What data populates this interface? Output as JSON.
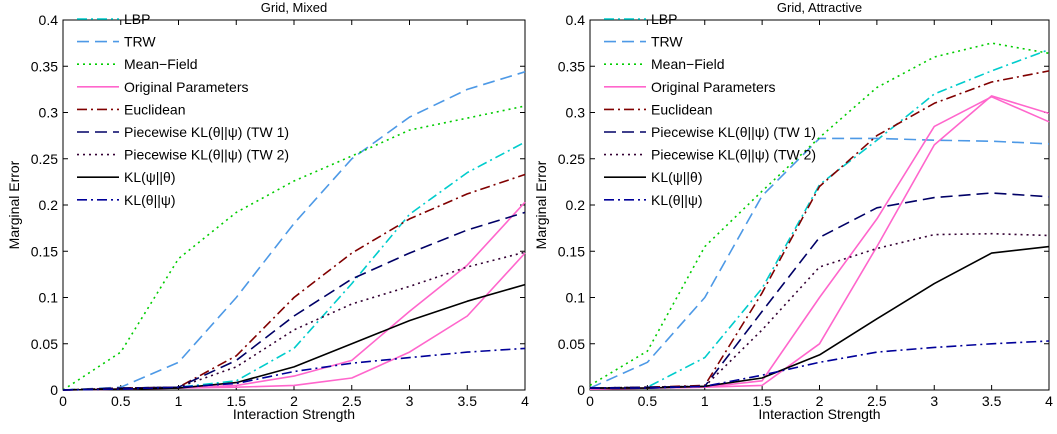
{
  "chart_data": [
    {
      "type": "line",
      "title": "Grid, Mixed",
      "xlabel": "Interaction Strength",
      "ylabel": "Marginal Error",
      "xlim": [
        0,
        4
      ],
      "ylim": [
        0,
        0.4
      ],
      "xticks": [
        0,
        0.5,
        1,
        1.5,
        2,
        2.5,
        3,
        3.5,
        4
      ],
      "xtick_labels": [
        "0",
        "0.5",
        "1",
        "1.5",
        "2",
        "2.5",
        "3",
        "3.5",
        "4"
      ],
      "yticks": [
        0,
        0.05,
        0.1,
        0.15,
        0.2,
        0.25,
        0.3,
        0.35,
        0.4
      ],
      "ytick_labels": [
        "0",
        "0.05",
        "0.1",
        "0.15",
        "0.2",
        "0.25",
        "0.3",
        "0.35",
        "0.4"
      ],
      "grid": false,
      "legend": "top-left",
      "series": [
        {
          "name": "LBP",
          "color": "#00cccc",
          "dash": "dashdot",
          "points": [
            [
              0,
              0
            ],
            [
              0.5,
              0.002
            ],
            [
              1,
              0.003
            ],
            [
              1.5,
              0.01
            ],
            [
              2,
              0.045
            ],
            [
              2.5,
              0.115
            ],
            [
              3,
              0.19
            ],
            [
              3.5,
              0.235
            ],
            [
              4,
              0.268
            ]
          ]
        },
        {
          "name": "TRW",
          "color": "#4d99e6",
          "dash": "dashed",
          "points": [
            [
              0,
              0
            ],
            [
              0.5,
              0.003
            ],
            [
              1,
              0.03
            ],
            [
              1.5,
              0.1
            ],
            [
              2,
              0.18
            ],
            [
              2.5,
              0.25
            ],
            [
              3,
              0.295
            ],
            [
              3.5,
              0.325
            ],
            [
              4,
              0.344
            ]
          ]
        },
        {
          "name": "Mean−Field",
          "color": "#00cc00",
          "dash": "dotted",
          "points": [
            [
              0,
              0
            ],
            [
              0.5,
              0.041
            ],
            [
              1,
              0.142
            ],
            [
              1.5,
              0.192
            ],
            [
              2,
              0.226
            ],
            [
              2.5,
              0.253
            ],
            [
              3,
              0.281
            ],
            [
              3.5,
              0.294
            ],
            [
              4,
              0.307
            ]
          ]
        },
        {
          "name": "Original Parameters",
          "color": "#ff66cc",
          "dash": "solid",
          "points": [
            [
              0,
              0
            ],
            [
              0.5,
              0.001
            ],
            [
              1,
              0.002
            ],
            [
              1.5,
              0.003
            ],
            [
              2,
              0.005
            ],
            [
              2.5,
              0.013
            ],
            [
              3,
              0.041
            ],
            [
              3.5,
              0.08
            ],
            [
              4,
              0.148
            ]
          ]
        },
        {
          "name": "Original Parameters",
          "color": "#ff66cc",
          "dash": "solid",
          "legend": false,
          "points": [
            [
              0,
              0
            ],
            [
              0.5,
              0.001
            ],
            [
              1,
              0.002
            ],
            [
              1.5,
              0.005
            ],
            [
              2,
              0.015
            ],
            [
              2.5,
              0.032
            ],
            [
              3,
              0.085
            ],
            [
              3.5,
              0.135
            ],
            [
              4,
              0.203
            ]
          ]
        },
        {
          "name": "Euclidean",
          "color": "#800000",
          "dash": "dashdot",
          "points": [
            [
              0,
              0
            ],
            [
              0.5,
              0.002
            ],
            [
              1,
              0.003
            ],
            [
              1.5,
              0.037
            ],
            [
              2,
              0.1
            ],
            [
              2.5,
              0.148
            ],
            [
              3,
              0.185
            ],
            [
              3.5,
              0.212
            ],
            [
              4,
              0.233
            ]
          ]
        },
        {
          "name": "Piecewise KL(θ||ψ) (TW 1)",
          "color": "#000066",
          "dash": "dashed",
          "points": [
            [
              0,
              0
            ],
            [
              0.5,
              0.002
            ],
            [
              1,
              0.003
            ],
            [
              1.5,
              0.032
            ],
            [
              2,
              0.08
            ],
            [
              2.5,
              0.12
            ],
            [
              3,
              0.148
            ],
            [
              3.5,
              0.173
            ],
            [
              4,
              0.192
            ]
          ]
        },
        {
          "name": "Piecewise KL(θ||ψ) (TW 2)",
          "color": "#330033",
          "dash": "dotted",
          "points": [
            [
              0,
              0
            ],
            [
              0.5,
              0.002
            ],
            [
              1,
              0.003
            ],
            [
              1.5,
              0.025
            ],
            [
              2,
              0.065
            ],
            [
              2.5,
              0.093
            ],
            [
              3,
              0.112
            ],
            [
              3.5,
              0.133
            ],
            [
              4,
              0.149
            ]
          ]
        },
        {
          "name": "KL(ψ||θ)",
          "color": "#000000",
          "dash": "solid",
          "points": [
            [
              0,
              0
            ],
            [
              0.5,
              0.001
            ],
            [
              1,
              0.002
            ],
            [
              1.5,
              0.008
            ],
            [
              2,
              0.025
            ],
            [
              2.5,
              0.05
            ],
            [
              3,
              0.075
            ],
            [
              3.5,
              0.096
            ],
            [
              4,
              0.114
            ]
          ]
        },
        {
          "name": "KL(θ||ψ)",
          "color": "#000099",
          "dash": "dashdot",
          "points": [
            [
              0,
              0
            ],
            [
              0.5,
              0.001
            ],
            [
              1,
              0.003
            ],
            [
              1.5,
              0.007
            ],
            [
              2,
              0.02
            ],
            [
              2.5,
              0.029
            ],
            [
              3,
              0.035
            ],
            [
              3.5,
              0.041
            ],
            [
              4,
              0.045
            ]
          ]
        }
      ]
    },
    {
      "type": "line",
      "title": "Grid, Attractive",
      "xlabel": "Interaction Strength",
      "ylabel": "Marginal Error",
      "xlim": [
        0,
        4
      ],
      "ylim": [
        0,
        0.4
      ],
      "xticks": [
        0,
        0.5,
        1,
        1.5,
        2,
        2.5,
        3,
        3.5,
        4
      ],
      "xtick_labels": [
        "0",
        "0.5",
        "1",
        "1.5",
        "2",
        "2.5",
        "3",
        "3.5",
        "4"
      ],
      "yticks": [
        0,
        0.05,
        0.1,
        0.15,
        0.2,
        0.25,
        0.3,
        0.35,
        0.4
      ],
      "ytick_labels": [
        "0",
        "0.05",
        "0.1",
        "0.15",
        "0.2",
        "0.25",
        "0.3",
        "0.35",
        "0.4"
      ],
      "grid": false,
      "legend": "top-left",
      "series": [
        {
          "name": "LBP",
          "color": "#00cccc",
          "dash": "dashdot",
          "points": [
            [
              0,
              0.002
            ],
            [
              0.5,
              0.003
            ],
            [
              1,
              0.035
            ],
            [
              1.5,
              0.11
            ],
            [
              2,
              0.222
            ],
            [
              2.5,
              0.27
            ],
            [
              3,
              0.32
            ],
            [
              3.5,
              0.345
            ],
            [
              4,
              0.368
            ]
          ]
        },
        {
          "name": "TRW",
          "color": "#4d99e6",
          "dash": "dashed",
          "points": [
            [
              0,
              0.002
            ],
            [
              0.5,
              0.03
            ],
            [
              1,
              0.1
            ],
            [
              1.5,
              0.21
            ],
            [
              2,
              0.272
            ],
            [
              2.5,
              0.272
            ],
            [
              3,
              0.27
            ],
            [
              3.5,
              0.269
            ],
            [
              4,
              0.266
            ]
          ]
        },
        {
          "name": "Mean−Field",
          "color": "#00cc00",
          "dash": "dotted",
          "points": [
            [
              0,
              0.005
            ],
            [
              0.5,
              0.042
            ],
            [
              1,
              0.155
            ],
            [
              1.5,
              0.215
            ],
            [
              2,
              0.273
            ],
            [
              2.5,
              0.327
            ],
            [
              3,
              0.36
            ],
            [
              3.5,
              0.375
            ],
            [
              4,
              0.364
            ]
          ]
        },
        {
          "name": "Original Parameters",
          "color": "#ff66cc",
          "dash": "solid",
          "points": [
            [
              0,
              0.001
            ],
            [
              0.5,
              0.002
            ],
            [
              1,
              0.003
            ],
            [
              1.5,
              0.01
            ],
            [
              2,
              0.1
            ],
            [
              2.5,
              0.185
            ],
            [
              3,
              0.285
            ],
            [
              3.5,
              0.317
            ],
            [
              4,
              0.29
            ]
          ]
        },
        {
          "name": "Original Parameters",
          "color": "#ff66cc",
          "dash": "solid",
          "legend": false,
          "points": [
            [
              0,
              0.001
            ],
            [
              0.5,
              0.002
            ],
            [
              1,
              0.003
            ],
            [
              1.5,
              0.005
            ],
            [
              2,
              0.05
            ],
            [
              2.5,
              0.155
            ],
            [
              3,
              0.265
            ],
            [
              3.5,
              0.318
            ],
            [
              4,
              0.299
            ]
          ]
        },
        {
          "name": "Euclidean",
          "color": "#800000",
          "dash": "dashdot",
          "points": [
            [
              0,
              0.002
            ],
            [
              0.5,
              0.003
            ],
            [
              1,
              0.005
            ],
            [
              1.5,
              0.105
            ],
            [
              2,
              0.22
            ],
            [
              2.5,
              0.275
            ],
            [
              3,
              0.31
            ],
            [
              3.5,
              0.333
            ],
            [
              4,
              0.345
            ]
          ]
        },
        {
          "name": "Piecewise KL(θ||ψ) (TW 1)",
          "color": "#000066",
          "dash": "dashed",
          "points": [
            [
              0,
              0.002
            ],
            [
              0.5,
              0.003
            ],
            [
              1,
              0.004
            ],
            [
              1.5,
              0.085
            ],
            [
              2,
              0.165
            ],
            [
              2.5,
              0.197
            ],
            [
              3,
              0.208
            ],
            [
              3.5,
              0.213
            ],
            [
              4,
              0.209
            ]
          ]
        },
        {
          "name": "Piecewise KL(θ||ψ) (TW 2)",
          "color": "#330033",
          "dash": "dotted",
          "points": [
            [
              0,
              0.002
            ],
            [
              0.5,
              0.003
            ],
            [
              1,
              0.004
            ],
            [
              1.5,
              0.065
            ],
            [
              2,
              0.133
            ],
            [
              2.5,
              0.153
            ],
            [
              3,
              0.168
            ],
            [
              3.5,
              0.169
            ],
            [
              4,
              0.167
            ]
          ]
        },
        {
          "name": "KL(ψ||θ)",
          "color": "#000000",
          "dash": "solid",
          "points": [
            [
              0,
              0.002
            ],
            [
              0.5,
              0.002
            ],
            [
              1,
              0.004
            ],
            [
              1.5,
              0.013
            ],
            [
              2,
              0.038
            ],
            [
              2.5,
              0.077
            ],
            [
              3,
              0.115
            ],
            [
              3.5,
              0.148
            ],
            [
              4,
              0.155
            ]
          ]
        },
        {
          "name": "KL(θ||ψ)",
          "color": "#000099",
          "dash": "dashdot",
          "points": [
            [
              0,
              0.002
            ],
            [
              0.5,
              0.002
            ],
            [
              1,
              0.004
            ],
            [
              1.5,
              0.016
            ],
            [
              2,
              0.03
            ],
            [
              2.5,
              0.041
            ],
            [
              3,
              0.046
            ],
            [
              3.5,
              0.05
            ],
            [
              4,
              0.053
            ]
          ]
        }
      ]
    }
  ]
}
